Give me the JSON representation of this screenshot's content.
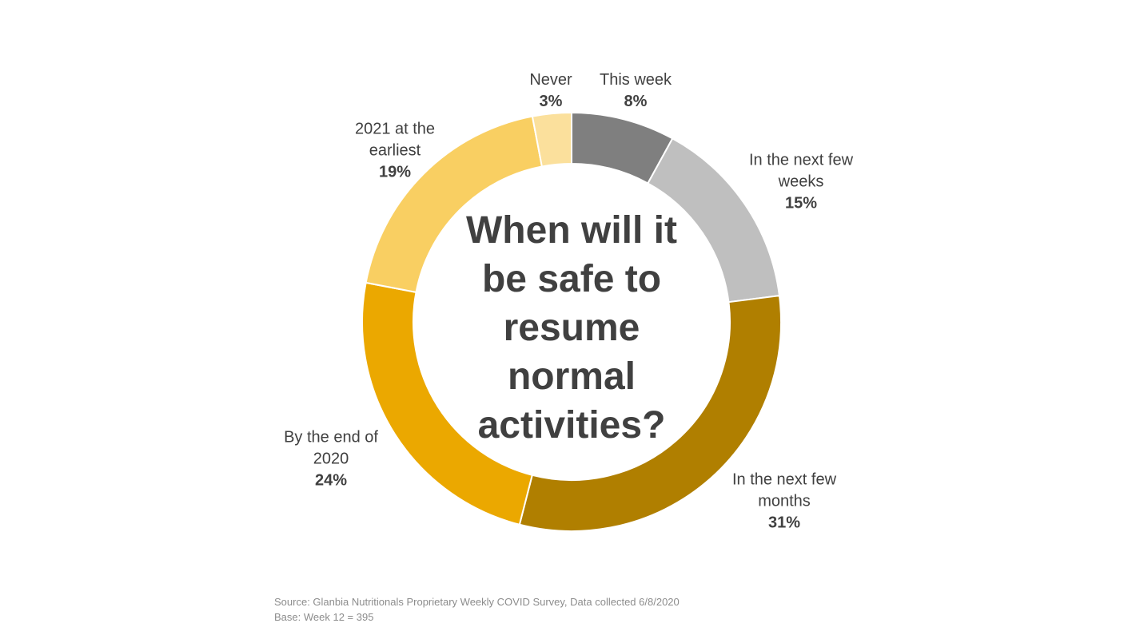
{
  "chart_data": {
    "type": "donut",
    "title": "When will it be safe to resume normal activities?",
    "categories": [
      "This week",
      "In the next few weeks",
      "In the next few months",
      "By the end of 2020",
      "2021 at the earliest",
      "Never"
    ],
    "values": [
      8,
      15,
      31,
      24,
      19,
      3
    ],
    "value_labels": [
      "8%",
      "15%",
      "31%",
      "24%",
      "19%",
      "3%"
    ],
    "colors": [
      "#7f7f7f",
      "#bfbfbf",
      "#b07f00",
      "#eba800",
      "#f9cf62",
      "#fbe09c"
    ],
    "notes": [
      "Source: Glanbia Nutritionals Proprietary Weekly COVID Survey, Data collected 6/8/2020",
      "Base: Week 12 = 395"
    ]
  }
}
